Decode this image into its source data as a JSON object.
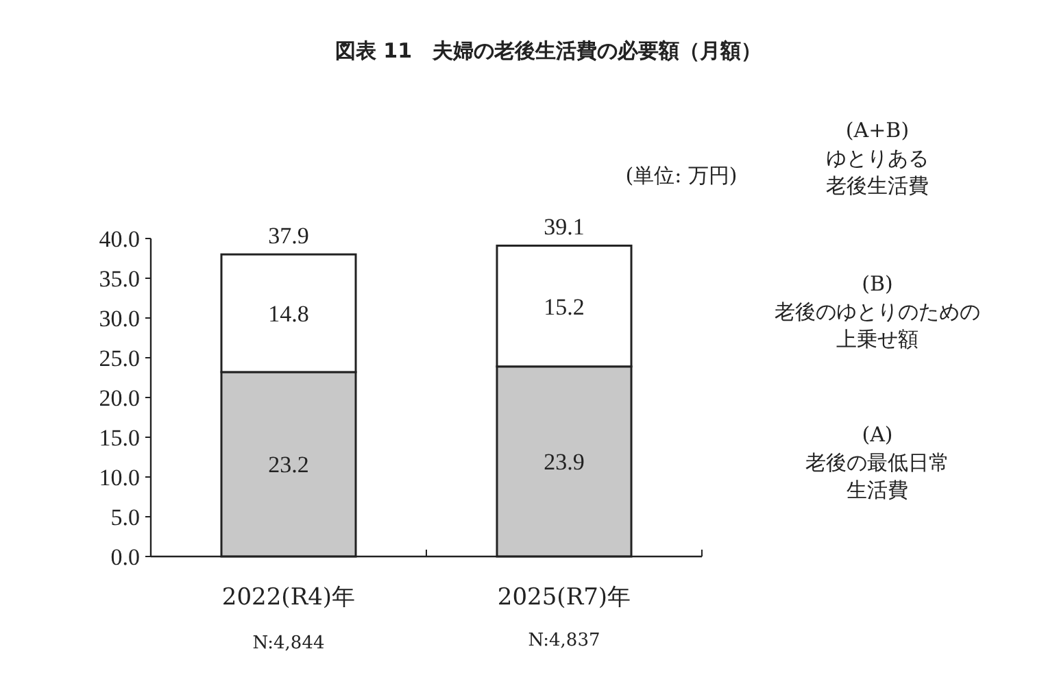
{
  "chart_data": {
    "type": "bar",
    "stacked": true,
    "title": "図表 11　夫婦の老後生活費の必要額（月額）",
    "categories": [
      "2022(R4)年",
      "2025(R7)年"
    ],
    "series": [
      {
        "name": "(A)\n老後の最低日常生活費",
        "color": "#c8c8c8",
        "values": [
          23.2,
          23.9
        ]
      },
      {
        "name": "(B)\n老後のゆとりのための上乗せ額",
        "color": "#ffffff",
        "values": [
          14.8,
          15.2
        ]
      }
    ],
    "totals": [
      "37.9",
      "39.1"
    ],
    "data_labels": true,
    "ylim": [
      0,
      40
    ],
    "yticks": [
      {
        "value": 0,
        "label": "0.0"
      },
      {
        "value": 5,
        "label": "5.0"
      },
      {
        "value": 10,
        "label": "10.0"
      },
      {
        "value": 15,
        "label": "15.0"
      },
      {
        "value": 20,
        "label": "20.0"
      },
      {
        "value": 25,
        "label": "25.0"
      },
      {
        "value": 30,
        "label": "30.0"
      },
      {
        "value": 35,
        "label": "35.0"
      },
      {
        "value": 40,
        "label": "40.0"
      }
    ],
    "annotations": [
      "(単位: 万円)",
      "(A+B)\nゆとりある老後生活費",
      "N:4,844",
      "N:4,837"
    ]
  }
}
